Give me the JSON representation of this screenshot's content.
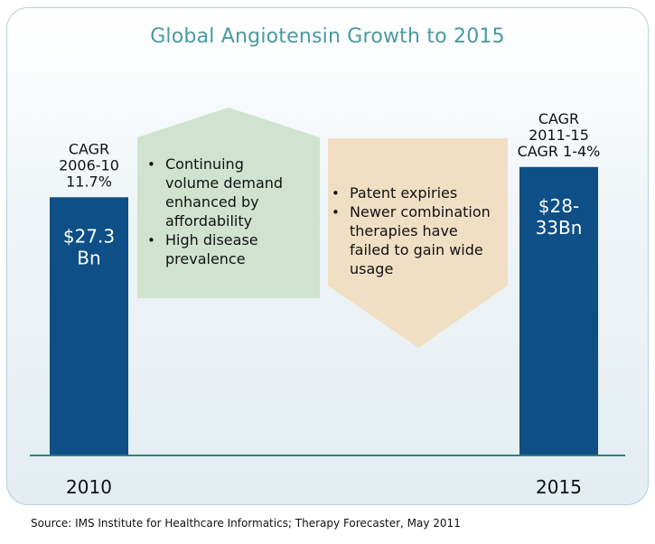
{
  "chart_data": {
    "type": "bar",
    "title": "Global Angiotensin Growth to 2015",
    "categories": [
      "2010",
      "2015"
    ],
    "values": [
      27.3,
      30.5
    ],
    "ylim": [
      0,
      45
    ],
    "bar_labels": [
      [
        "$27.3",
        "Bn"
      ],
      [
        "$28-",
        "33Bn"
      ]
    ],
    "cagr_labels": [
      [
        "CAGR",
        "2006-10",
        "11.7%"
      ],
      [
        "CAGR",
        "2011-15",
        "CAGR 1-4%"
      ]
    ],
    "drivers": {
      "bullets": [
        [
          "Continuing",
          "volume demand",
          "enhanced by",
          "affordability"
        ],
        [
          "High disease",
          "prevalence"
        ]
      ]
    },
    "constraints": {
      "bullets": [
        [
          "Patent expiries"
        ],
        [
          "Newer combination",
          "therapies have",
          "failed to gain wide",
          "usage"
        ]
      ]
    },
    "source": "Source: IMS Institute for Healthcare Informatics; Therapy Forecaster, May 2011",
    "colors": {
      "bar": "#0d4f86",
      "drivers_fill": "#cfe3cf",
      "constraints_fill": "#f1dfc4",
      "title": "#4a9aa2",
      "baseline": "#2f7f7c"
    }
  }
}
